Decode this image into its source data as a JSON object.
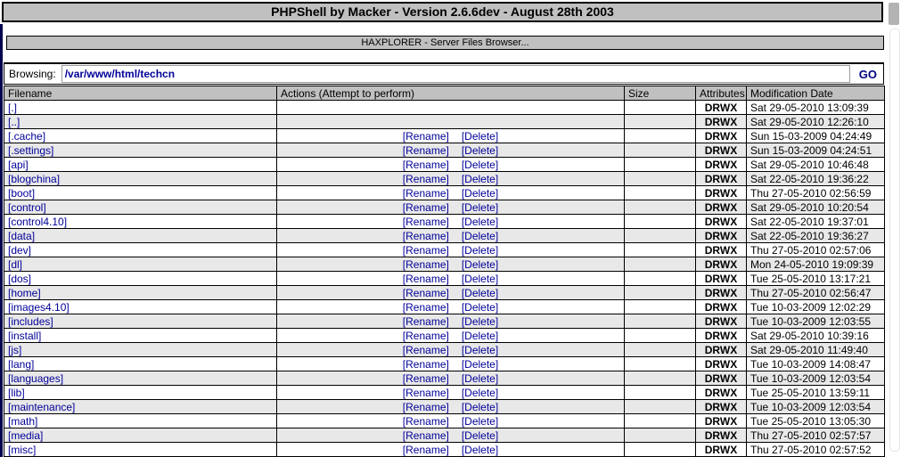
{
  "title_bar": {
    "text": "PHPShell by Macker - Version 2.6.6dev - August 28th 2003"
  },
  "subheader": {
    "text": "HAXPLORER - Server Files Browser..."
  },
  "browse": {
    "label": "Browsing:",
    "path_value": "/var/www/html/techcn",
    "go_label": "GO"
  },
  "table": {
    "headers": [
      "Filename",
      "Actions (Attempt to perform)",
      "Size",
      "Attributes",
      "Modification Date"
    ],
    "action_labels": {
      "rename": "[Rename]",
      "delete": "[Delete]"
    },
    "rows": [
      {
        "filename": "[.]",
        "actions": false,
        "size": "",
        "attributes": "DRWX",
        "modified": "Sat 29-05-2010 13:09:39"
      },
      {
        "filename": "[..]",
        "actions": false,
        "size": "",
        "attributes": "DRWX",
        "modified": "Sat 29-05-2010 12:26:10"
      },
      {
        "filename": "[.cache]",
        "actions": true,
        "size": "",
        "attributes": "DRWX",
        "modified": "Sun 15-03-2009 04:24:49"
      },
      {
        "filename": "[.settings]",
        "actions": true,
        "size": "",
        "attributes": "DRWX",
        "modified": "Sun 15-03-2009 04:24:51"
      },
      {
        "filename": "[api]",
        "actions": true,
        "size": "",
        "attributes": "DRWX",
        "modified": "Sat 29-05-2010 10:46:48"
      },
      {
        "filename": "[blogchina]",
        "actions": true,
        "size": "",
        "attributes": "DRWX",
        "modified": "Sat 22-05-2010 19:36:22"
      },
      {
        "filename": "[boot]",
        "actions": true,
        "size": "",
        "attributes": "DRWX",
        "modified": "Thu 27-05-2010 02:56:59"
      },
      {
        "filename": "[control]",
        "actions": true,
        "size": "",
        "attributes": "DRWX",
        "modified": "Sat 29-05-2010 10:20:54"
      },
      {
        "filename": "[control4.10]",
        "actions": true,
        "size": "",
        "attributes": "DRWX",
        "modified": "Sat 22-05-2010 19:37:01"
      },
      {
        "filename": "[data]",
        "actions": true,
        "size": "",
        "attributes": "DRWX",
        "modified": "Sat 22-05-2010 19:36:27"
      },
      {
        "filename": "[dev]",
        "actions": true,
        "size": "",
        "attributes": "DRWX",
        "modified": "Thu 27-05-2010 02:57:06"
      },
      {
        "filename": "[dl]",
        "actions": true,
        "size": "",
        "attributes": "DRWX",
        "modified": "Mon 24-05-2010 19:09:39"
      },
      {
        "filename": "[dos]",
        "actions": true,
        "size": "",
        "attributes": "DRWX",
        "modified": "Tue 25-05-2010 13:17:21"
      },
      {
        "filename": "[home]",
        "actions": true,
        "size": "",
        "attributes": "DRWX",
        "modified": "Thu 27-05-2010 02:56:47"
      },
      {
        "filename": "[images4.10]",
        "actions": true,
        "size": "",
        "attributes": "DRWX",
        "modified": "Tue 10-03-2009 12:02:29"
      },
      {
        "filename": "[includes]",
        "actions": true,
        "size": "",
        "attributes": "DRWX",
        "modified": "Tue 10-03-2009 12:03:55"
      },
      {
        "filename": "[install]",
        "actions": true,
        "size": "",
        "attributes": "DRWX",
        "modified": "Sat 29-05-2010 10:39:16"
      },
      {
        "filename": "[js]",
        "actions": true,
        "size": "",
        "attributes": "DRWX",
        "modified": "Sat 29-05-2010 11:49:40"
      },
      {
        "filename": "[lang]",
        "actions": true,
        "size": "",
        "attributes": "DRWX",
        "modified": "Tue 10-03-2009 14:08:47"
      },
      {
        "filename": "[languages]",
        "actions": true,
        "size": "",
        "attributes": "DRWX",
        "modified": "Tue 10-03-2009 12:03:54"
      },
      {
        "filename": "[lib]",
        "actions": true,
        "size": "",
        "attributes": "DRWX",
        "modified": "Tue 25-05-2010 13:59:11"
      },
      {
        "filename": "[maintenance]",
        "actions": true,
        "size": "",
        "attributes": "DRWX",
        "modified": "Tue 10-03-2009 12:03:54"
      },
      {
        "filename": "[math]",
        "actions": true,
        "size": "",
        "attributes": "DRWX",
        "modified": "Tue 25-05-2010 13:05:30"
      },
      {
        "filename": "[media]",
        "actions": true,
        "size": "",
        "attributes": "DRWX",
        "modified": "Thu 27-05-2010 02:57:57"
      },
      {
        "filename": "[misc]",
        "actions": true,
        "size": "",
        "attributes": "DRWX",
        "modified": "Thu 27-05-2010 02:57:52"
      }
    ]
  },
  "colors": {
    "bar_background": "#c0c0c0",
    "link": "#000099",
    "row_alternate": "#e8e8e8",
    "border": "#000000"
  }
}
